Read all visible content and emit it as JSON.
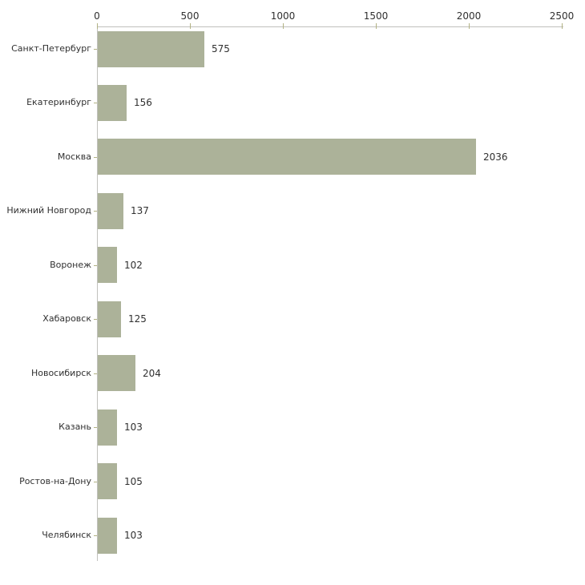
{
  "chart_data": {
    "type": "bar",
    "orientation": "horizontal",
    "title": "",
    "xlabel": "",
    "ylabel": "",
    "grid": false,
    "legend": null,
    "data_labels": true,
    "categories": [
      "Санкт-Петербург",
      "Екатеринбург",
      "Москва",
      "Нижний Новгород",
      "Воронеж",
      "Хабаровск",
      "Новосибирск",
      "Казань",
      "Ростов-на-Дону",
      "Челябинск"
    ],
    "values": [
      575,
      156,
      2036,
      137,
      102,
      125,
      204,
      103,
      105,
      103
    ],
    "x_ticks": [
      0,
      500,
      1000,
      1500,
      2000,
      2500
    ],
    "xlim": [
      0,
      2500
    ],
    "colors": {
      "bar_fill": "#acb299",
      "axis_line": "#c1c1bd",
      "tick_mark": "#b2b284",
      "label_text": "#303030",
      "background": "#ffffff"
    }
  }
}
